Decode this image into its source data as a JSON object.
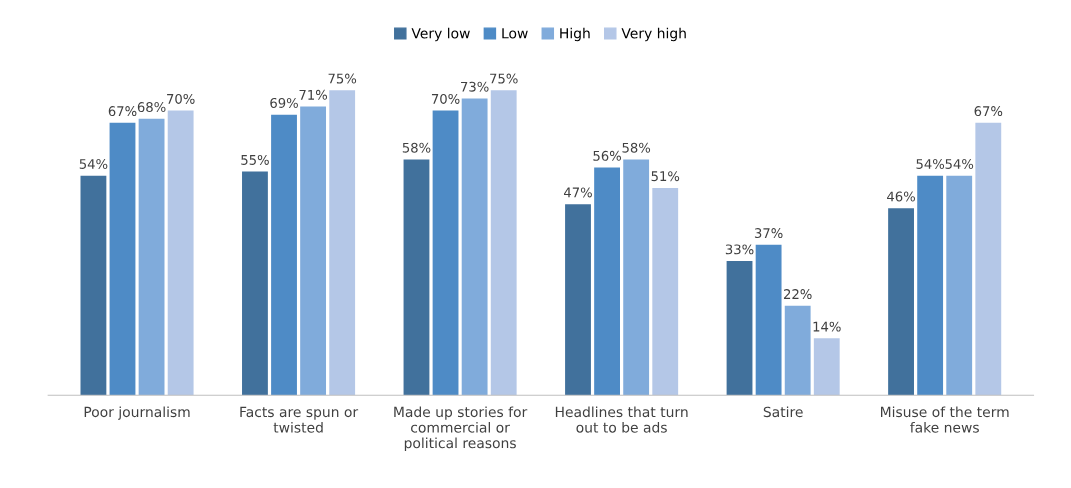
{
  "chart_data": {
    "type": "bar",
    "categories": [
      "Poor journalism",
      "Facts are spun or\ntwisted",
      "Made up stories for\ncommercial or\npolitical reasons",
      "Headlines that turn\nout to be ads",
      "Satire",
      "Misuse of the term\nfake news"
    ],
    "series": [
      {
        "name": "Very low",
        "color": "#41719c",
        "values": [
          54,
          55,
          58,
          47,
          33,
          46
        ],
        "value_labels": [
          "54%",
          "55%",
          "58%",
          "47%",
          "33%",
          "46%"
        ]
      },
      {
        "name": "Low",
        "color": "#4e8bc6",
        "values": [
          67,
          69,
          70,
          56,
          37,
          54
        ],
        "value_labels": [
          "67%",
          "69%",
          "70%",
          "56%",
          "37%",
          "54%"
        ]
      },
      {
        "name": "High",
        "color": "#80abdb",
        "values": [
          68,
          71,
          73,
          58,
          22,
          54
        ],
        "value_labels": [
          "68%",
          "71%",
          "73%",
          "58%",
          "22%",
          "54%"
        ]
      },
      {
        "name": "Very high",
        "color": "#b4c7e7",
        "values": [
          70,
          75,
          75,
          51,
          14,
          67
        ],
        "value_labels": [
          "70%",
          "75%",
          "75%",
          "51%",
          "14%",
          "67%"
        ]
      }
    ],
    "legend": "top"
  }
}
